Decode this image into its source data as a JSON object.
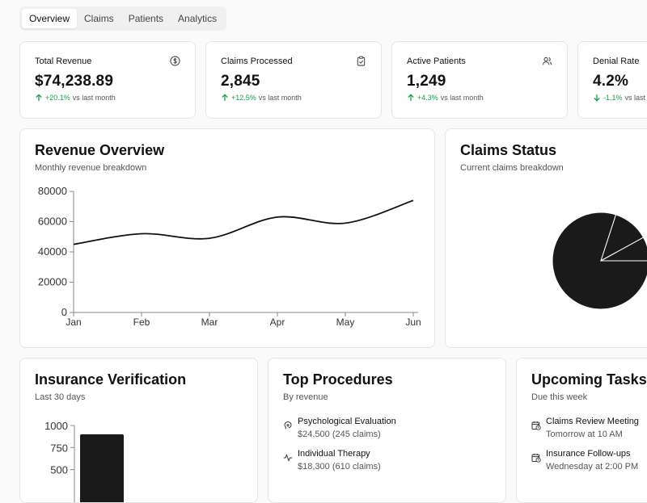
{
  "tabs": [
    {
      "label": "Overview",
      "active": true
    },
    {
      "label": "Claims",
      "active": false
    },
    {
      "label": "Patients",
      "active": false
    },
    {
      "label": "Analytics",
      "active": false
    }
  ],
  "stats": [
    {
      "label": "Total Revenue",
      "value": "$74,238.89",
      "change": "+20.1%",
      "direction": "up",
      "suffix": "vs last month",
      "icon": "dollar-circle-icon"
    },
    {
      "label": "Claims Processed",
      "value": "2,845",
      "change": "+12.5%",
      "direction": "up",
      "suffix": "vs last month",
      "icon": "clipboard-check-icon"
    },
    {
      "label": "Active Patients",
      "value": "1,249",
      "change": "+4.3%",
      "direction": "up",
      "suffix": "vs last month",
      "icon": "users-icon"
    },
    {
      "label": "Denial Rate",
      "value": "4.2%",
      "change": "-1.1%",
      "direction": "down",
      "suffix": "vs last month",
      "icon": "trend-icon"
    }
  ],
  "revenue_chart": {
    "title": "Revenue Overview",
    "subtitle": "Monthly revenue breakdown",
    "chart_data": {
      "type": "line",
      "categories": [
        "Jan",
        "Feb",
        "Mar",
        "Apr",
        "May",
        "Jun"
      ],
      "series": [
        {
          "values": [
            45000,
            52000,
            49000,
            63000,
            59000,
            74000
          ]
        }
      ],
      "yticks": [
        "0",
        "20000",
        "40000",
        "60000",
        "80000"
      ],
      "ylim": [
        0,
        80000
      ],
      "grid": false,
      "color": "#111111"
    }
  },
  "claims_status": {
    "title": "Claims Status",
    "subtitle": "Current claims breakdown",
    "chart_data": {
      "type": "pie",
      "values": [
        80,
        12,
        8
      ],
      "color": "#1a1a1a"
    }
  },
  "insurance": {
    "title": "Insurance Verification",
    "subtitle": "Last 30 days",
    "chart_data": {
      "type": "bar",
      "values": [
        900
      ],
      "yticks": [
        "1000",
        "750",
        "500"
      ],
      "ylim": [
        0,
        1000
      ],
      "color": "#1a1a1a"
    }
  },
  "procedures": {
    "title": "Top Procedures",
    "subtitle": "By revenue",
    "items": [
      {
        "name": "Psychological Evaluation",
        "detail": "$24,500 (245 claims)",
        "icon": "brain-icon"
      },
      {
        "name": "Individual Therapy",
        "detail": "$18,300 (610 claims)",
        "icon": "activity-icon"
      }
    ]
  },
  "tasks": {
    "title": "Upcoming Tasks",
    "subtitle": "Due this week",
    "items": [
      {
        "name": "Claims Review Meeting",
        "detail": "Tomorrow at 10 AM",
        "icon": "calendar-clock-icon"
      },
      {
        "name": "Insurance Follow-ups",
        "detail": "Wednesday at 2:00 PM",
        "icon": "calendar-clock-icon"
      }
    ]
  }
}
